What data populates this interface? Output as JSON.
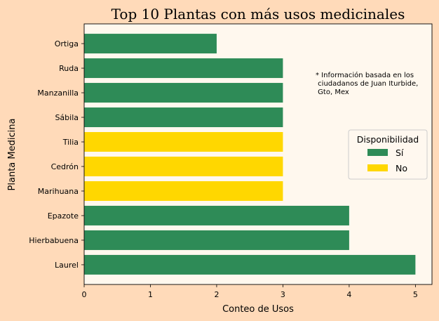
{
  "chart_data": {
    "type": "bar",
    "orientation": "horizontal",
    "title": "Top 10 Plantas con más usos medicinales",
    "xlabel": "Conteo de Usos",
    "ylabel": "Planta Medicina",
    "xlim": [
      0,
      5.25
    ],
    "xticks": [
      0,
      1,
      2,
      3,
      4,
      5
    ],
    "grid": false,
    "categories": [
      "Laurel",
      "Hierbabuena",
      "Epazote",
      "Marihuana",
      "Cedrón",
      "Tilia",
      "Sábila",
      "Manzanilla",
      "Ruda",
      "Ortiga"
    ],
    "values": [
      5,
      4,
      4,
      3,
      3,
      3,
      3,
      3,
      3,
      2
    ],
    "availability": [
      "Sí",
      "Sí",
      "Sí",
      "No",
      "No",
      "No",
      "Sí",
      "Sí",
      "Sí",
      "Sí"
    ],
    "legend": {
      "title": "Disponibilidad",
      "placement": "center-right",
      "entries": [
        {
          "label": "Sí",
          "color": "#2E8B57"
        },
        {
          "label": "No",
          "color": "#FFD700"
        }
      ]
    },
    "annotation": [
      "* Información basada en los",
      " ciudadanos de Juan Iturbide,",
      " Gto, Mex"
    ],
    "colors": {
      "figure_bg": "#FFDAB9",
      "plot_bg": "#FFF8EE"
    }
  }
}
